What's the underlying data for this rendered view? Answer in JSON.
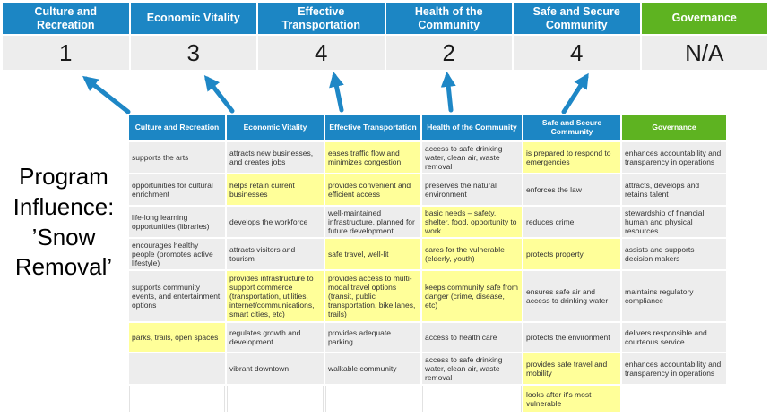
{
  "colors": {
    "blue": "#1c86c4",
    "green": "#5eb321",
    "yellow": "#ffff99",
    "cell_gray": "#ededed"
  },
  "program_label": "Program Influence: ’Snow Removal’",
  "summary": {
    "columns": [
      {
        "label": "Culture and Recreation",
        "score": "1",
        "color": "blue"
      },
      {
        "label": "Economic Vitality",
        "score": "3",
        "color": "blue"
      },
      {
        "label": "Effective Transportation",
        "score": "4",
        "color": "blue"
      },
      {
        "label": "Health of the Community",
        "score": "2",
        "color": "blue"
      },
      {
        "label": "Safe and Secure Community",
        "score": "4",
        "color": "blue"
      },
      {
        "label": "Governance",
        "score": "N/A",
        "color": "green"
      }
    ]
  },
  "matrix": {
    "headers": [
      {
        "label": "Culture and Recreation",
        "color": "blue"
      },
      {
        "label": "Economic Vitality",
        "color": "blue"
      },
      {
        "label": "Effective Transportation",
        "color": "blue"
      },
      {
        "label": "Health of the Community",
        "color": "blue"
      },
      {
        "label": "Safe and Secure Community",
        "color": "blue"
      },
      {
        "label": "Governance",
        "color": "green"
      }
    ],
    "rows": [
      [
        {
          "text": "supports the arts",
          "bg": "gray"
        },
        {
          "text": "attracts new businesses, and creates jobs",
          "bg": "gray"
        },
        {
          "text": "eases traffic flow and minimizes congestion",
          "bg": "yellow"
        },
        {
          "text": "access to safe drinking water, clean air, waste removal",
          "bg": "gray"
        },
        {
          "text": "is prepared to respond to emergencies",
          "bg": "yellow"
        },
        {
          "text": "enhances accountability and transparency in operations",
          "bg": "gray"
        }
      ],
      [
        {
          "text": "opportunities for cultural enrichment",
          "bg": "gray"
        },
        {
          "text": "helps retain current businesses",
          "bg": "yellow"
        },
        {
          "text": "provides convenient and efficient access",
          "bg": "yellow"
        },
        {
          "text": "preserves the natural environment",
          "bg": "gray"
        },
        {
          "text": "enforces the law",
          "bg": "gray"
        },
        {
          "text": "attracts, develops and retains talent",
          "bg": "gray"
        }
      ],
      [
        {
          "text": "life-long learning opportunities (libraries)",
          "bg": "gray"
        },
        {
          "text": "develops the workforce",
          "bg": "gray"
        },
        {
          "text": "well-maintained infrastructure, planned for future development",
          "bg": "gray"
        },
        {
          "text": "basic needs – safety, shelter, food, opportunity to work",
          "bg": "yellow"
        },
        {
          "text": "reduces crime",
          "bg": "gray"
        },
        {
          "text": "stewardship of financial, human and physical resources",
          "bg": "gray"
        }
      ],
      [
        {
          "text": "encourages healthy people (promotes active lifestyle)",
          "bg": "gray"
        },
        {
          "text": "attracts visitors and tourism",
          "bg": "gray"
        },
        {
          "text": "safe travel, well-lit",
          "bg": "yellow"
        },
        {
          "text": "cares for the vulnerable (elderly, youth)",
          "bg": "yellow"
        },
        {
          "text": "protects property",
          "bg": "yellow"
        },
        {
          "text": "assists and supports decision makers",
          "bg": "gray"
        }
      ],
      [
        {
          "text": "supports community events, and entertainment options",
          "bg": "gray"
        },
        {
          "text": "provides infrastructure to support commerce (transportation, utilities, internet/communications, smart cities, etc)",
          "bg": "yellow"
        },
        {
          "text": "provides access to multi-modal travel options (transit, public transportation, bike lanes, trails)",
          "bg": "yellow"
        },
        {
          "text": "keeps community safe from danger (crime, disease, etc)",
          "bg": "yellow"
        },
        {
          "text": "ensures safe air and access to drinking water",
          "bg": "gray"
        },
        {
          "text": "maintains regulatory compliance",
          "bg": "gray"
        }
      ],
      [
        {
          "text": "parks, trails, open spaces",
          "bg": "yellow"
        },
        {
          "text": "regulates growth and development",
          "bg": "gray"
        },
        {
          "text": "provides adequate parking",
          "bg": "gray"
        },
        {
          "text": "access to health care",
          "bg": "gray"
        },
        {
          "text": "protects the environment",
          "bg": "gray"
        },
        {
          "text": "delivers responsible and courteous service",
          "bg": "gray"
        }
      ],
      [
        {
          "text": "",
          "bg": "gray"
        },
        {
          "text": "vibrant downtown",
          "bg": "gray"
        },
        {
          "text": "walkable community",
          "bg": "gray"
        },
        {
          "text": "access to safe drinking water, clean air, waste removal",
          "bg": "gray"
        },
        {
          "text": "provides safe travel and mobility",
          "bg": "yellow"
        },
        {
          "text": "enhances accountability and transparency in operations",
          "bg": "gray"
        }
      ],
      [
        {
          "text": "",
          "bg": "white"
        },
        {
          "text": "",
          "bg": "white"
        },
        {
          "text": "",
          "bg": "white"
        },
        {
          "text": "",
          "bg": "white"
        },
        {
          "text": "looks after it's most vulnerable",
          "bg": "yellow"
        },
        {
          "text": "",
          "bg": "none"
        }
      ]
    ]
  }
}
